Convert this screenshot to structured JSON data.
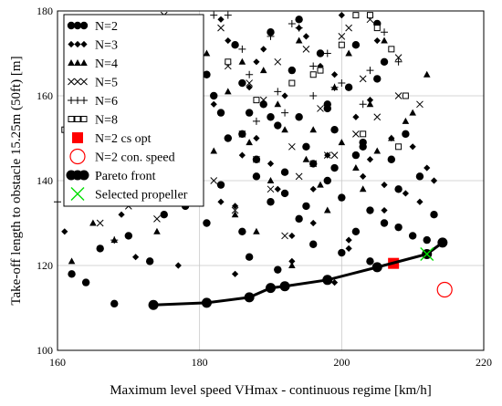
{
  "chart_data": {
    "type": "scatter",
    "title": "",
    "xlabel": "Maximum level speed VHmax - continuous regime    [km/h]",
    "ylabel": "Take-off length to obstacle 15.25m (50ft)    [m]",
    "xlim": [
      160,
      220
    ],
    "ylim": [
      100,
      180
    ],
    "xticks": [
      "160",
      "180",
      "200",
      "220"
    ],
    "yticks": [
      "100",
      "120",
      "140",
      "160",
      "180"
    ],
    "grid": true,
    "legend_position": "top-left",
    "series": [
      {
        "name": "N=2",
        "marker": "dot",
        "color": "#000000",
        "x": [
          162,
          164,
          166,
          168,
          170,
          173,
          175,
          178,
          181,
          183,
          186,
          188,
          190,
          192,
          194,
          196,
          198,
          200,
          202,
          204,
          206,
          208,
          210,
          212,
          184,
          187,
          191,
          195,
          199,
          203,
          207,
          211,
          182,
          186,
          189,
          193,
          197,
          201,
          205,
          209,
          213,
          180,
          185,
          190,
          194,
          198,
          202,
          206,
          176,
          179,
          183,
          188,
          192,
          196,
          200,
          204,
          208,
          187,
          191,
          195,
          199,
          203,
          181,
          186,
          190,
          194,
          198,
          202,
          205
        ],
        "y": [
          118,
          116,
          124,
          111,
          127,
          121,
          132,
          134,
          130,
          139,
          128,
          145,
          135,
          142,
          131,
          144,
          140,
          136,
          128,
          133,
          130,
          129,
          127,
          126,
          150,
          156,
          153,
          148,
          152,
          149,
          145,
          141,
          160,
          163,
          158,
          166,
          170,
          162,
          164,
          151,
          132,
          168,
          172,
          175,
          178,
          158,
          146,
          168,
          175,
          160,
          156,
          141,
          137,
          125,
          123,
          121,
          138,
          122,
          119,
          134,
          143,
          148,
          165,
          151,
          155,
          155,
          157,
          172,
          177
        ]
      },
      {
        "name": "N=3",
        "marker": "diamond",
        "color": "#000000",
        "x": [
          161,
          163,
          166,
          169,
          171,
          174,
          177,
          180,
          183,
          185,
          188,
          190,
          193,
          196,
          198,
          201,
          203,
          206,
          209,
          211,
          213,
          182,
          187,
          192,
          197,
          202,
          207,
          212,
          179,
          184,
          189,
          194,
          199,
          204,
          210,
          175,
          180,
          186,
          191,
          196,
          201,
          206,
          170,
          175,
          183,
          188,
          195,
          200,
          205,
          172,
          178,
          185,
          193,
          199,
          204
        ],
        "y": [
          128,
          136,
          146,
          132,
          122,
          148,
          120,
          142,
          135,
          118,
          150,
          144,
          127,
          138,
          146,
          124,
          141,
          133,
          137,
          135,
          140,
          158,
          162,
          160,
          167,
          155,
          150,
          143,
          170,
          173,
          171,
          176,
          165,
          159,
          148,
          163,
          154,
          146,
          138,
          130,
          126,
          139,
          172,
          177,
          178,
          168,
          174,
          179,
          173,
          155,
          167,
          134,
          121,
          116,
          145
        ]
      },
      {
        "name": "N=4",
        "marker": "triangle",
        "color": "#000000",
        "x": [
          162,
          165,
          168,
          170,
          172,
          174,
          177,
          180,
          182,
          185,
          187,
          190,
          192,
          195,
          197,
          200,
          202,
          205,
          207,
          210,
          212,
          184,
          189,
          194,
          199,
          204,
          209,
          181,
          186,
          191,
          196,
          201,
          206,
          176,
          178,
          188,
          193,
          198,
          203
        ],
        "y": [
          121,
          130,
          126,
          136,
          141,
          128,
          144,
          138,
          147,
          132,
          149,
          140,
          152,
          145,
          139,
          149,
          143,
          147,
          150,
          156,
          165,
          161,
          166,
          173,
          162,
          158,
          154,
          170,
          168,
          158,
          152,
          170,
          173,
          162,
          156,
          128,
          120,
          133,
          138
        ]
      },
      {
        "name": "N=5",
        "marker": "x",
        "color": "#000000",
        "x": [
          166,
          170,
          174,
          178,
          182,
          185,
          188,
          190,
          193,
          196,
          199,
          202,
          205,
          208,
          211,
          187,
          191,
          195,
          200,
          204,
          208,
          183,
          189,
          194,
          197,
          201,
          186,
          192,
          198,
          203,
          175,
          180,
          184
        ],
        "y": [
          130,
          134,
          131,
          137,
          140,
          133,
          145,
          138,
          148,
          144,
          146,
          151,
          155,
          160,
          158,
          163,
          168,
          171,
          174,
          178,
          169,
          176,
          159,
          141,
          157,
          176,
          151,
          127,
          146,
          164,
          179,
          152,
          167
        ]
      },
      {
        "name": "N=6",
        "marker": "plus",
        "color": "#000000",
        "x": [
          160,
          164,
          168,
          172,
          176,
          180,
          184,
          188,
          192,
          196,
          200,
          204,
          208,
          186,
          190,
          194,
          198,
          202,
          206,
          182,
          187,
          193,
          199,
          203,
          174,
          178,
          184,
          196,
          191,
          170
        ],
        "y": [
          135,
          139,
          126,
          141,
          144,
          147,
          150,
          154,
          156,
          160,
          163,
          166,
          168,
          171,
          174,
          176,
          170,
          172,
          175,
          179,
          165,
          177,
          162,
          158,
          174,
          177,
          179,
          167,
          161,
          178
        ]
      },
      {
        "name": "N=8",
        "marker": "square",
        "color": "#000000",
        "x": [
          161,
          179,
          184,
          188,
          193,
          197,
          200,
          202,
          205,
          207,
          209,
          196,
          204,
          208,
          203
        ],
        "y": [
          152,
          156,
          168,
          159,
          163,
          166,
          172,
          179,
          176,
          171,
          160,
          165,
          179,
          148,
          151
        ]
      },
      {
        "name": "N=2 cs opt",
        "marker": "filled-square",
        "color": "#ff0000",
        "x": [
          207.3
        ],
        "y": [
          120.5
        ]
      },
      {
        "name": "N=2 con. speed",
        "marker": "open-circle",
        "color": "#ff0000",
        "x": [
          214.5
        ],
        "y": [
          114.3
        ]
      },
      {
        "name": "Pareto front",
        "marker": "line-dot",
        "color": "#000000",
        "x": [
          173.5,
          181,
          187,
          190,
          192,
          198,
          205,
          212,
          214.2
        ],
        "y": [
          110.7,
          111.2,
          112.5,
          114.7,
          115.1,
          116.6,
          119.6,
          122.7,
          125.4
        ]
      },
      {
        "name": "Selected propeller",
        "marker": "x",
        "color": "#00dd00",
        "x": [
          212
        ],
        "y": [
          122.7
        ]
      }
    ]
  }
}
